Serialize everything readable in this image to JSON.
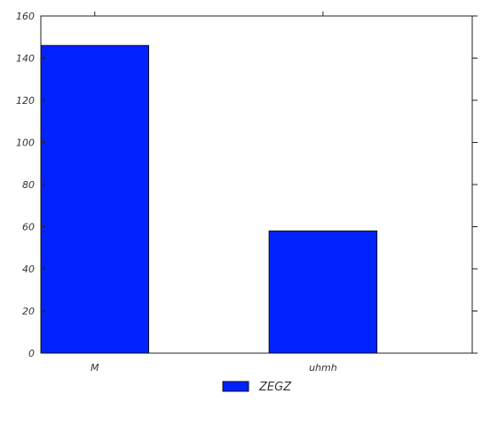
{
  "chart_data": {
    "type": "bar",
    "categories": [
      "M",
      "uhmh"
    ],
    "series": [
      {
        "name": "ZEGZ",
        "values": [
          146,
          58
        ],
        "color": "#0022ff"
      }
    ],
    "ylim": [
      0,
      160
    ],
    "yticks": [
      0,
      20,
      40,
      60,
      80,
      100,
      120,
      140,
      160
    ],
    "xlabel": "",
    "ylabel": "",
    "title": "",
    "grid": false,
    "legend_position": "bottom-center"
  }
}
